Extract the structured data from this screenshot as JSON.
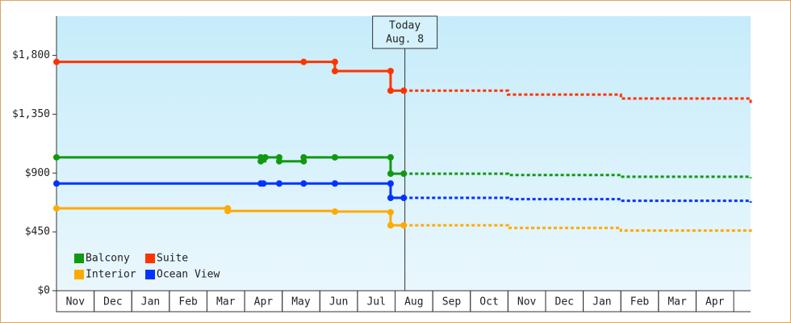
{
  "chart_data": {
    "type": "step-line",
    "months": [
      "Nov",
      "Dec",
      "Jan",
      "Feb",
      "Mar",
      "Apr",
      "May",
      "Jun",
      "Jul",
      "Aug",
      "Sep",
      "Oct",
      "Nov",
      "Dec",
      "Jan",
      "Feb",
      "Mar",
      "Apr"
    ],
    "xlim": [
      0,
      18.45
    ],
    "ylim": [
      0,
      2100
    ],
    "yticks": [
      {
        "value": 0,
        "label": "$0"
      },
      {
        "value": 450,
        "label": "$450"
      },
      {
        "value": 900,
        "label": "$900"
      },
      {
        "value": 1350,
        "label": "$1,350"
      },
      {
        "value": 1800,
        "label": "$1,800"
      }
    ],
    "annotation": {
      "x": 9.26,
      "lines": [
        "Today",
        "Aug. 8"
      ]
    },
    "series": [
      {
        "name": "Balcony",
        "color": "#119911",
        "x": [
          0,
          5.43,
          5.43,
          5.55,
          5.92,
          5.92,
          6.57,
          6.57,
          7.4,
          8.88,
          8.88,
          9.23
        ],
        "values": [
          1020,
          1020,
          990,
          1020,
          1020,
          990,
          990,
          1020,
          1020,
          1020,
          895,
          895
        ],
        "forecast_x": [
          9.23,
          12,
          15,
          18.45
        ],
        "forecast_values": [
          895,
          885,
          872,
          860
        ]
      },
      {
        "name": "Suite",
        "color": "#ff3300",
        "x": [
          0,
          6.57,
          7.4,
          7.4,
          8.88,
          8.88,
          9.23
        ],
        "values": [
          1750,
          1750,
          1750,
          1680,
          1680,
          1530,
          1530
        ],
        "forecast_x": [
          9.23,
          12,
          15,
          18.45
        ],
        "forecast_values": [
          1530,
          1500,
          1470,
          1435
        ]
      },
      {
        "name": "Interior",
        "color": "#ffaa00",
        "x": [
          0,
          4.55,
          4.55,
          7.4,
          8.88,
          8.88,
          9.23
        ],
        "values": [
          630,
          630,
          610,
          605,
          600,
          500,
          500
        ],
        "forecast_x": [
          9.23,
          12,
          15,
          18.45
        ],
        "forecast_values": [
          500,
          480,
          460,
          439
        ]
      },
      {
        "name": "Ocean View",
        "color": "#0033ff",
        "x": [
          0,
          5.43,
          5.5,
          5.92,
          6.57,
          7.4,
          8.88,
          8.88,
          9.23
        ],
        "values": [
          820,
          820,
          820,
          820,
          820,
          820,
          820,
          710,
          710
        ],
        "forecast_x": [
          9.23,
          12,
          15,
          18.45
        ],
        "forecast_values": [
          710,
          700,
          688,
          673
        ]
      }
    ]
  }
}
